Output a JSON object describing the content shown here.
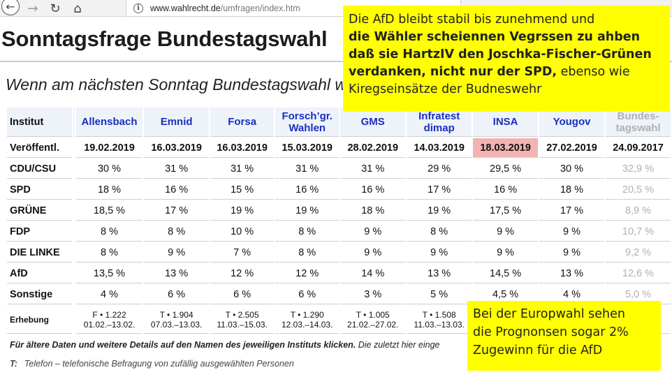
{
  "browser": {
    "back_glyph": "←",
    "forward_glyph": "→",
    "reload_glyph": "↻",
    "home_glyph": "⌂",
    "info_glyph": "i",
    "url_host": "www.wahlrecht.de",
    "url_path": "/umfragen/index.htm"
  },
  "page": {
    "title": "Sonntagsfrage Bundestagswahl",
    "subtitle": "Wenn am nächsten Sonntag Bundestagswahl wäre …"
  },
  "table": {
    "institut_label": "Institut",
    "institutes": [
      {
        "line1": "Allensbach",
        "line2": ""
      },
      {
        "line1": "Emnid",
        "line2": ""
      },
      {
        "line1": "Forsa",
        "line2": ""
      },
      {
        "line1": "Forsch’gr.",
        "line2": "Wahlen"
      },
      {
        "line1": "GMS",
        "line2": ""
      },
      {
        "line1": "Infratest",
        "line2": "dimap"
      },
      {
        "line1": "INSA",
        "line2": ""
      },
      {
        "line1": "Yougov",
        "line2": ""
      },
      {
        "line1": "Bundes-",
        "line2": "tagswahl"
      }
    ],
    "dates_label": "Veröffentl.",
    "dates": [
      "19.02.2019",
      "16.03.2019",
      "16.03.2019",
      "15.03.2019",
      "28.02.2019",
      "14.03.2019",
      "18.03.2019",
      "27.02.2019",
      "24.09.2017"
    ],
    "parties": [
      {
        "name": "CDU/CSU",
        "values": [
          "30 %",
          "31 %",
          "31 %",
          "31 %",
          "31 %",
          "29 %",
          "29,5 %",
          "30 %",
          "32,9 %"
        ]
      },
      {
        "name": "SPD",
        "values": [
          "18 %",
          "16 %",
          "15 %",
          "16 %",
          "16 %",
          "17 %",
          "16 %",
          "18 %",
          "20,5 %"
        ]
      },
      {
        "name": "GRÜNE",
        "values": [
          "18,5 %",
          "17 %",
          "19 %",
          "19 %",
          "18 %",
          "19 %",
          "17,5 %",
          "17 %",
          "8,9 %"
        ]
      },
      {
        "name": "FDP",
        "values": [
          "8 %",
          "8 %",
          "10 %",
          "8 %",
          "9 %",
          "8 %",
          "9 %",
          "9 %",
          "10,7 %"
        ]
      },
      {
        "name": "DIE LINKE",
        "values": [
          "8 %",
          "9 %",
          "7 %",
          "8 %",
          "9 %",
          "9 %",
          "9 %",
          "9 %",
          "9,2 %"
        ]
      },
      {
        "name": "AfD",
        "values": [
          "13,5 %",
          "13 %",
          "12 %",
          "12 %",
          "14 %",
          "13 %",
          "14,5 %",
          "13 %",
          "12,6 %"
        ]
      },
      {
        "name": "Sonstige",
        "values": [
          "4 %",
          "6 %",
          "6 %",
          "6 %",
          "3 %",
          "5 %",
          "4,5 %",
          "4 %",
          "5,0 %"
        ]
      }
    ],
    "erhebung_label": "Erhebung",
    "erhebung": [
      {
        "line1": "F • 1.222",
        "line2": "01.02.–13.02."
      },
      {
        "line1": "T • 1.904",
        "line2": "07.03.–13.03."
      },
      {
        "line1": "T • 2.505",
        "line2": "11.03.–15.03."
      },
      {
        "line1": "T • 1.290",
        "line2": "12.03.–14.03."
      },
      {
        "line1": "T • 1.005",
        "line2": "21.02.–27.02."
      },
      {
        "line1": "T • 1.508",
        "line2": "11.03.–13.03."
      },
      {
        "line1": "",
        "line2": ""
      },
      {
        "line1": "",
        "line2": ""
      },
      {
        "line1": "",
        "line2": ""
      }
    ]
  },
  "footnote": {
    "bold": "Für ältere Daten und weitere Details auf den Namen des jeweiligen Instituts klicken.",
    "rest": " Die zuletzt hier einge"
  },
  "legend": {
    "key": "T:",
    "text": "Telefon – telefonische Befragung von zufällig ausgewählten Personen"
  },
  "callout_top": {
    "line1": "Die AfD bleibt stabil bis zunehmend und",
    "bold_lines": [
      "die Wähler scheiennen Vegrssen zu ahben",
      "daß sie HartzIV den Joschka-Fischer-Grünen",
      "verdanken, nicht nur der SPD,"
    ],
    "line4_rest": " ebenso wie",
    "line5": "Kiregseinsätze der Budneswehr"
  },
  "callout_bottom": {
    "lines": [
      "Bei der Europwahl sehen",
      "die Prognonsen sogar 2%",
      "Zugewinn für die AfD"
    ]
  },
  "colors": {
    "highlight": "#f2b3b3",
    "callout": "#ffff00",
    "institute_link": "#1a2fc0"
  }
}
